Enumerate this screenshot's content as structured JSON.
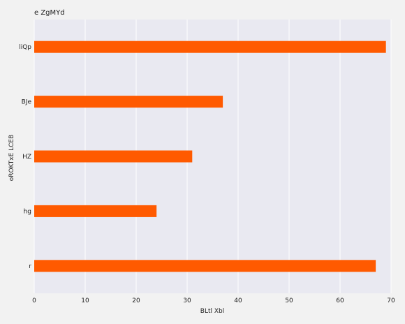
{
  "chart_data": {
    "type": "bar",
    "orientation": "horizontal",
    "title": "e  ZgMYd",
    "xlabel": "BLtl Xbl",
    "ylabel": "oROKTxE LCEB",
    "categories": [
      "liQp",
      "BJe",
      "HZ",
      "hg",
      "r"
    ],
    "values": [
      69,
      37,
      31,
      24,
      67
    ],
    "xlim": [
      0,
      70
    ],
    "xticks": [
      0,
      10,
      20,
      30,
      40,
      50,
      60,
      70
    ],
    "grid": true,
    "colors": {
      "bar": "#ff5a00",
      "plot_background": "#e9e9f1",
      "grid": "#ffffff"
    }
  }
}
